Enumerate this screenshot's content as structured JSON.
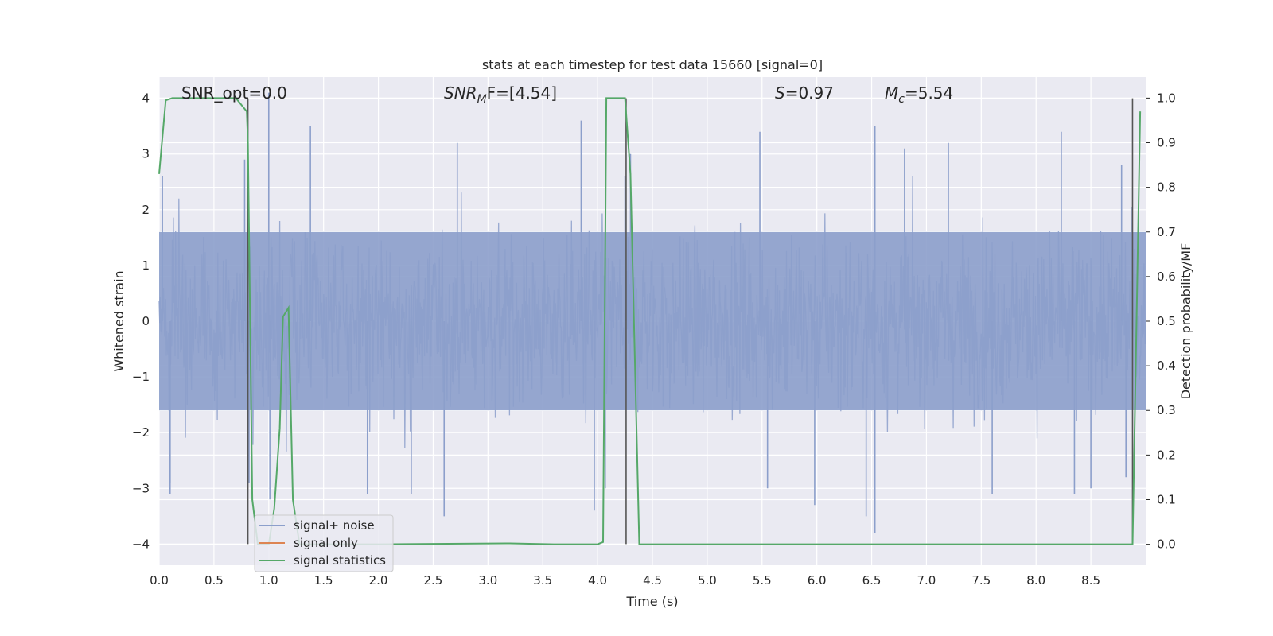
{
  "chart_data": {
    "type": "line",
    "title": "stats at each timestep for test data 15660 [signal=0]",
    "xlabel": "Time (s)",
    "ylabel": "Whitened strain",
    "y2label": "Detection probability/MF",
    "xlim": [
      0.0,
      9.0
    ],
    "ylim": [
      -4.38,
      4.38
    ],
    "y2lim": [
      -0.047,
      1.047
    ],
    "xticks": [
      "0.0",
      "0.5",
      "1.0",
      "1.5",
      "2.0",
      "2.5",
      "3.0",
      "3.5",
      "4.0",
      "4.5",
      "5.0",
      "5.5",
      "6.0",
      "6.5",
      "7.0",
      "7.5",
      "8.0",
      "8.5"
    ],
    "yticks": [
      "4",
      "3",
      "2",
      "1",
      "0",
      "−1",
      "−2",
      "−3",
      "−4"
    ],
    "y2ticks": [
      "1.0",
      "0.9",
      "0.8",
      "0.7",
      "0.6",
      "0.5",
      "0.4",
      "0.3",
      "0.2",
      "0.1",
      "0.0"
    ],
    "grid": true,
    "legend_position": "lower-left",
    "annotations": {
      "snr_opt": "SNR_opt=0.0",
      "snr_mf_main": "SNR",
      "snr_mf_sub": "M",
      "snr_mf_rest": "F=[4.54]",
      "s_main": "S",
      "s_rest": "=0.97",
      "mc_main": "M",
      "mc_sub": "c",
      "mc_rest": "=5.54"
    },
    "series": [
      {
        "name": "signal+ noise",
        "color": "#8c9fcb",
        "envelope_description": "whitened noise strain, roughly gaussian, amplitude mostly within ±2.5 with peaks near ±3.5",
        "typical_amplitude": 2.2,
        "peak_samples": [
          {
            "x": 0.03,
            "y": 2.6
          },
          {
            "x": 0.1,
            "y": -2.9
          },
          {
            "x": 0.1,
            "y": -3.1
          },
          {
            "x": 0.78,
            "y": 2.9
          },
          {
            "x": 0.82,
            "y": -2.9
          },
          {
            "x": 1.0,
            "y": 4.1
          },
          {
            "x": 1.01,
            "y": -3.2
          },
          {
            "x": 1.38,
            "y": 3.5
          },
          {
            "x": 1.9,
            "y": -3.1
          },
          {
            "x": 2.3,
            "y": -3.1
          },
          {
            "x": 2.6,
            "y": -3.5
          },
          {
            "x": 2.72,
            "y": 3.2
          },
          {
            "x": 3.85,
            "y": 3.6
          },
          {
            "x": 3.97,
            "y": -3.4
          },
          {
            "x": 4.07,
            "y": -3.0
          },
          {
            "x": 4.25,
            "y": 2.6
          },
          {
            "x": 4.3,
            "y": 3.0
          },
          {
            "x": 5.48,
            "y": 3.4
          },
          {
            "x": 5.55,
            "y": -3.0
          },
          {
            "x": 5.98,
            "y": -3.3
          },
          {
            "x": 6.45,
            "y": -3.5
          },
          {
            "x": 6.53,
            "y": 3.5
          },
          {
            "x": 6.53,
            "y": -3.8
          },
          {
            "x": 6.8,
            "y": 3.1
          },
          {
            "x": 7.2,
            "y": 3.2
          },
          {
            "x": 7.6,
            "y": -3.1
          },
          {
            "x": 8.23,
            "y": 3.4
          },
          {
            "x": 8.35,
            "y": -3.1
          },
          {
            "x": 8.5,
            "y": -3.0
          },
          {
            "x": 8.78,
            "y": 2.8
          },
          {
            "x": 8.82,
            "y": -2.8
          }
        ]
      },
      {
        "name": "signal only",
        "color": "#dd8452",
        "x": [],
        "y": []
      },
      {
        "name": "signal statistics",
        "color": "#55a868",
        "axis": "right",
        "x": [
          0.0,
          0.06,
          0.12,
          0.5,
          0.7,
          0.8,
          0.81,
          0.85,
          0.9,
          1.0,
          1.05,
          1.1,
          1.13,
          1.18,
          1.22,
          1.28,
          1.35,
          2.0,
          3.2,
          3.6,
          4.0,
          4.05,
          4.08,
          4.12,
          4.25,
          4.3,
          4.38,
          5.0,
          6.0,
          7.0,
          8.0,
          8.88,
          8.92,
          8.95
        ],
        "y": [
          0.83,
          0.995,
          1.0,
          1.0,
          1.0,
          0.97,
          0.9,
          0.1,
          0.0,
          0.0,
          0.08,
          0.26,
          0.51,
          0.53,
          0.1,
          0.0,
          0.0,
          0.0,
          0.002,
          0.0,
          0.0,
          0.005,
          1.0,
          1.0,
          1.0,
          0.83,
          0.0,
          0.0,
          0.0,
          0.0,
          0.0,
          0.0,
          0.55,
          0.97
        ]
      }
    ],
    "vertical_markers": [
      {
        "x": 0.81,
        "y_top": 4.0,
        "y_bottom": -4.0
      },
      {
        "x": 4.07,
        "y_top": 4.0,
        "y_bottom": 4.0
      },
      {
        "x": 4.26,
        "y_top": 4.0,
        "y_bottom": -4.0
      },
      {
        "x": 8.88,
        "y_top": 4.0,
        "y_bottom": -4.0
      }
    ]
  }
}
